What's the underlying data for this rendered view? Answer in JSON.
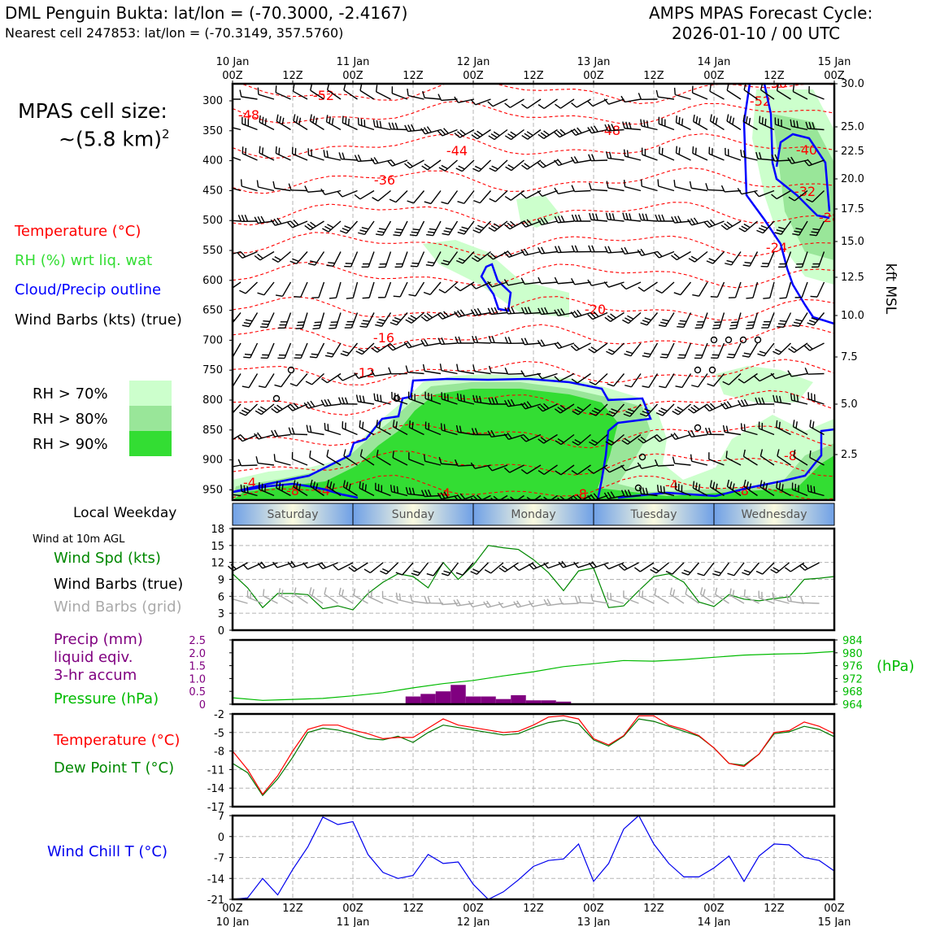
{
  "header": {
    "station_title": "DML Penguin Bukta: lat/lon = (-70.3000, -2.4167)",
    "nearest_cell": "Nearest cell 247853: lat/lon = (-70.3149, 357.5760)",
    "forecast_title": "AMPS MPAS Forecast Cycle:",
    "forecast_cycle": "2026-01-10 / 00 UTC"
  },
  "cell_size": {
    "label": "MPAS cell size:",
    "value": "~(5.8 km)",
    "exponent": "2"
  },
  "legend": {
    "temperature": "Temperature (°C)",
    "rh": "RH (%) wrt liq. wat",
    "cloud": "Cloud/Precip outline",
    "wind_barbs": "Wind Barbs (kts) (true)",
    "rh70": "RH > 70%",
    "rh80": "RH > 80%",
    "rh90": "RH > 90%"
  },
  "colors": {
    "temp": "#ff0000",
    "rh_text": "#33cc33",
    "cloud": "#0000ff",
    "rh70": "#ccffcc",
    "rh80": "#99e699",
    "rh90": "#33dd33",
    "speed": "#008800",
    "precip": "#800080",
    "pressure": "#00bb00",
    "dew": "#007700",
    "chill": "#0000ee",
    "grid_barb": "#aaaaaa"
  },
  "time_axis": {
    "top_day": [
      "10 Jan",
      "",
      "11 Jan",
      "",
      "12 Jan",
      "",
      "13 Jan",
      "",
      "14 Jan",
      "",
      "15 Jan"
    ],
    "hour": [
      "00Z",
      "12Z",
      "00Z",
      "12Z",
      "00Z",
      "12Z",
      "00Z",
      "12Z",
      "00Z",
      "12Z",
      "00Z"
    ],
    "bottom_day": [
      "10 Jan",
      "",
      "11 Jan",
      "",
      "12 Jan",
      "",
      "13 Jan",
      "",
      "14 Jan",
      "",
      "15 Jan"
    ]
  },
  "weekdays": {
    "label": "Local Weekday",
    "days": [
      "Saturday",
      "Sunday",
      "Monday",
      "Tuesday",
      "Wednesday"
    ]
  },
  "xsection": {
    "pressure_ticks": [
      "300",
      "350",
      "400",
      "450",
      "500",
      "550",
      "600",
      "650",
      "700",
      "750",
      "800",
      "850",
      "900",
      "950"
    ],
    "kft_ticks": [
      "30.0",
      "25.0",
      "22.5",
      "20.0",
      "17.5",
      "15.0",
      "12.5",
      "10.0",
      "7.5",
      "5.0",
      "2.5"
    ],
    "kft_label": "kft MSL",
    "contour_labels": [
      "-52",
      "-48",
      "-44",
      "-36",
      "-48",
      "-40",
      "-32",
      "-28",
      "-24",
      "-20",
      "-16",
      "-12",
      "-8",
      "-8",
      "-4",
      "-4",
      "-8",
      "-4",
      "-8",
      "-4",
      "-50",
      "-52"
    ]
  },
  "panels": {
    "wind_header": "Wind at 10m AGL",
    "wind_speed_label": "Wind Spd (kts)",
    "wind_true_label": "Wind Barbs (true)",
    "wind_grid_label": "Wind Barbs (grid)",
    "precip_label1": "Precip (mm)",
    "precip_label2": "liquid eqiv.",
    "precip_label3": "3-hr accum",
    "pressure_label": "Pressure (hPa)",
    "hpa_label": "(hPa)",
    "temp_label": "Temperature (°C)",
    "dew_label": "Dew Point T (°C)",
    "chill_label": "Wind Chill T (°C)"
  },
  "chart_data": [
    {
      "type": "line",
      "title": "Wind at 10m AGL",
      "ylabel": "Wind Spd (kts)",
      "x_hours": [
        0,
        3,
        6,
        9,
        12,
        15,
        18,
        21,
        24,
        27,
        30,
        33,
        36,
        39,
        42,
        45,
        48,
        51,
        54,
        57,
        60,
        63,
        66,
        69,
        72,
        75,
        78,
        81,
        84,
        87,
        90,
        93,
        96,
        99,
        102,
        105,
        108,
        111,
        114,
        117,
        120
      ],
      "ylim": [
        0,
        18
      ],
      "yticks": [
        "0",
        "3",
        "6",
        "9",
        "12",
        "15",
        "18"
      ],
      "series": [
        {
          "name": "Wind Spd (kts)",
          "values": [
            10.0,
            7.5,
            4.0,
            6.5,
            6.5,
            6.3,
            3.8,
            4.3,
            3.6,
            6.5,
            8.5,
            10.0,
            9.5,
            7.5,
            12.0,
            9.0,
            11.5,
            15.0,
            14.6,
            14.3,
            12.5,
            10.2,
            7.0,
            10.5,
            11.0,
            4.0,
            4.3,
            7.0,
            9.5,
            10.0,
            8.5,
            5.0,
            4.2,
            6.3,
            5.5,
            5.2,
            5.6,
            5.9,
            9.0,
            9.2,
            9.5
          ]
        }
      ]
    },
    {
      "type": "bar",
      "title": "Precip (mm) liquid eqiv. 3-hr accum",
      "x_hours": [
        24,
        27,
        30,
        33,
        36,
        39,
        42,
        45,
        48,
        51,
        54,
        57,
        60,
        63,
        66
      ],
      "values": [
        0,
        0,
        0,
        0,
        0.3,
        0.4,
        0.5,
        0.75,
        0.3,
        0.3,
        0.2,
        0.35,
        0.15,
        0.15,
        0.1
      ],
      "ylim": [
        0,
        2.5
      ],
      "yticks": [
        "0",
        "0.5",
        "1.0",
        "1.5",
        "2.0",
        "2.5"
      ]
    },
    {
      "type": "line",
      "title": "Pressure (hPa)",
      "x_hours": [
        0,
        6,
        12,
        18,
        24,
        30,
        36,
        42,
        48,
        54,
        60,
        66,
        72,
        78,
        84,
        90,
        96,
        102,
        108,
        114,
        120
      ],
      "series": [
        {
          "name": "Pressure (hPa)",
          "values": [
            966.0,
            965.2,
            965.5,
            965.8,
            966.6,
            967.6,
            969.1,
            970.4,
            971.4,
            972.8,
            974.1,
            975.7,
            976.6,
            977.6,
            977.4,
            977.9,
            978.6,
            979.3,
            979.6,
            979.8,
            980.4
          ]
        }
      ],
      "ylim": [
        964,
        984
      ],
      "yticks": [
        "964",
        "968",
        "972",
        "976",
        "980",
        "984"
      ]
    },
    {
      "type": "line",
      "title": "Temperature / Dew Point",
      "x_hours": [
        0,
        3,
        6,
        9,
        12,
        15,
        18,
        21,
        24,
        27,
        30,
        33,
        36,
        39,
        42,
        45,
        48,
        51,
        54,
        57,
        60,
        63,
        66,
        69,
        72,
        75,
        78,
        81,
        84,
        87,
        90,
        93,
        96,
        99,
        102,
        105,
        108,
        111,
        114,
        117,
        120
      ],
      "ylim": [
        -17,
        -2
      ],
      "yticks": [
        "-17",
        "-14",
        "-11",
        "-8",
        "-5",
        "-2"
      ],
      "series": [
        {
          "name": "Temperature (°C)",
          "values": [
            -8.0,
            -11.0,
            -15.0,
            -12.0,
            -8.0,
            -4.5,
            -3.8,
            -3.8,
            -4.6,
            -5.2,
            -6.0,
            -5.8,
            -5.8,
            -4.3,
            -2.8,
            -3.8,
            -4.2,
            -4.6,
            -5.0,
            -4.8,
            -3.8,
            -2.5,
            -2.3,
            -2.8,
            -6.0,
            -7.0,
            -5.5,
            -2.3,
            -2.3,
            -3.8,
            -4.5,
            -5.5,
            -7.5,
            -10.0,
            -10.5,
            -8.5,
            -5.0,
            -4.7,
            -3.3,
            -4.0,
            -5.2
          ]
        },
        {
          "name": "Dew Point T (°C)",
          "values": [
            -10.0,
            -11.5,
            -15.2,
            -12.5,
            -9.0,
            -5.0,
            -4.3,
            -4.6,
            -5.2,
            -6.0,
            -6.2,
            -5.6,
            -6.6,
            -5.0,
            -3.8,
            -4.2,
            -4.6,
            -5.0,
            -5.4,
            -5.2,
            -4.2,
            -3.4,
            -3.0,
            -3.6,
            -6.2,
            -7.2,
            -5.6,
            -2.8,
            -3.2,
            -4.0,
            -4.8,
            -5.6,
            -7.5,
            -10.0,
            -10.3,
            -8.5,
            -5.2,
            -4.9,
            -4.0,
            -4.5,
            -5.7
          ]
        }
      ]
    },
    {
      "type": "line",
      "title": "Wind Chill T (°C)",
      "x_hours": [
        0,
        3,
        6,
        9,
        12,
        15,
        18,
        21,
        24,
        27,
        30,
        33,
        36,
        39,
        42,
        45,
        48,
        51,
        54,
        57,
        60,
        63,
        66,
        69,
        72,
        75,
        78,
        81,
        84,
        87,
        90,
        93,
        96,
        99,
        102,
        105,
        108,
        111,
        114,
        117,
        120
      ],
      "ylim": [
        -21,
        7
      ],
      "yticks": [
        "-21",
        "-14",
        "-7",
        "0",
        "7"
      ],
      "series": [
        {
          "name": "Wind Chill T (°C)",
          "values": [
            -21.0,
            -20.5,
            -14.0,
            -19.5,
            -11.0,
            -3.5,
            6.5,
            4.0,
            5.0,
            -6.0,
            -12.0,
            -14.0,
            -13.0,
            -6.0,
            -9.0,
            -8.5,
            -16.0,
            -21.0,
            -18.5,
            -14.5,
            -10.0,
            -8.0,
            -7.5,
            -2.5,
            -15.0,
            -9.0,
            2.5,
            7.0,
            -2.5,
            -9.0,
            -13.5,
            -13.5,
            -10.5,
            -6.5,
            -15.0,
            -6.5,
            -2.5,
            -2.8,
            -7.0,
            -8.0,
            -11.5
          ]
        }
      ]
    }
  ]
}
